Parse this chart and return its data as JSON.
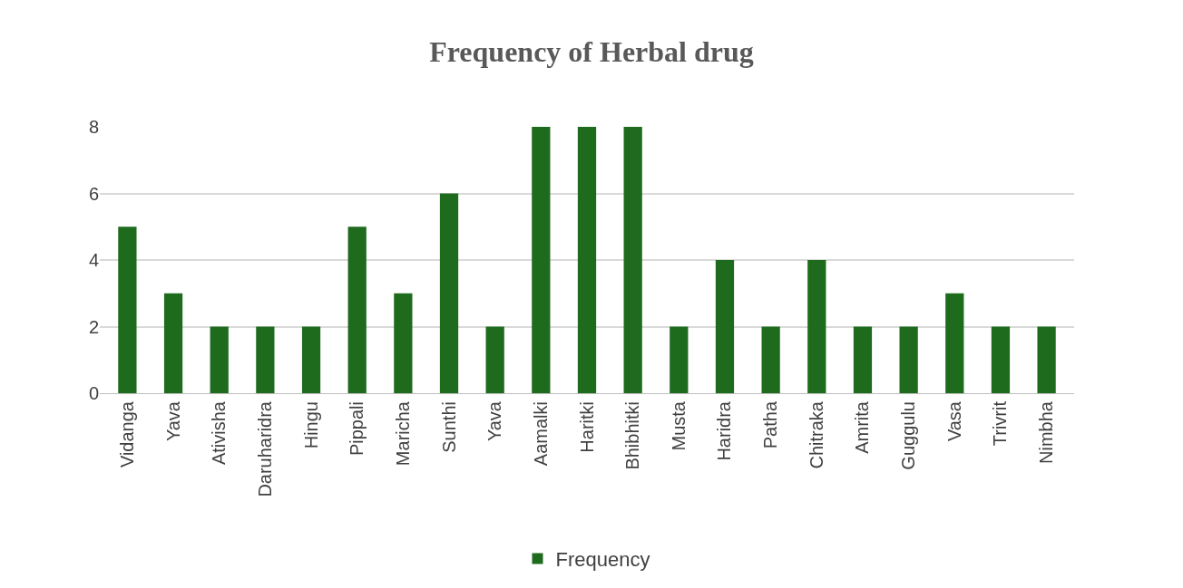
{
  "chart_data": {
    "type": "bar",
    "title": "Frequency of Herbal drug",
    "categories": [
      "Vidanga",
      "Yava",
      "Ativisha",
      "Daruharidra",
      "Hingu",
      "Pippali",
      "Maricha",
      "Sunthi",
      "Yava",
      "Aamalki",
      "Haritki",
      "Bhibhitki",
      "Musta",
      "Haridra",
      "Patha",
      "Chitraka",
      "Amrita",
      "Guggulu",
      "Vasa",
      "Trivrit",
      "Nimbha"
    ],
    "series": [
      {
        "name": "Frequency",
        "color": "#1e6b1e",
        "values": [
          5,
          3,
          2,
          2,
          2,
          5,
          3,
          6,
          2,
          8,
          8,
          8,
          2,
          4,
          2,
          4,
          2,
          2,
          3,
          2,
          2
        ]
      }
    ],
    "ylim": [
      0,
      8
    ],
    "yticks": [
      0,
      2,
      4,
      6,
      8
    ],
    "grid": "y",
    "legend": "bottom"
  }
}
